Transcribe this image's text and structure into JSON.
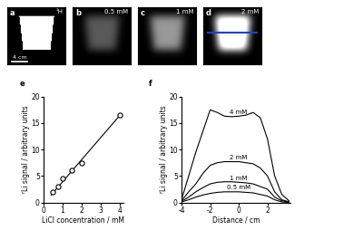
{
  "images": [
    {
      "label": "a",
      "caption": "¹H",
      "scale_bar": "4 cm"
    },
    {
      "label": "b",
      "caption": "0.5 mM"
    },
    {
      "label": "c",
      "caption": "1 mM"
    },
    {
      "label": "d",
      "caption": "2 mM"
    }
  ],
  "chart_data": [
    {
      "label": "e",
      "type": "scatter",
      "x_label": "LiCl concentration / mM",
      "y_label": "⁷Li signal / arbitrary units",
      "xlim": [
        0,
        4.2
      ],
      "ylim": [
        0,
        20
      ],
      "xticks": [
        0,
        1,
        2,
        3,
        4
      ],
      "yticks": [
        0,
        5,
        10,
        15,
        20
      ],
      "series": [
        {
          "type": "scatter",
          "marker": "o",
          "color": "#000000",
          "x": [
            0.5,
            0.75,
            1,
            1.5,
            2,
            4
          ],
          "values": [
            2,
            3,
            4.5,
            6,
            7.5,
            16.5
          ]
        },
        {
          "type": "line",
          "color": "#000000",
          "x": [
            0.4,
            4
          ],
          "values": [
            1.4,
            16.4
          ]
        }
      ]
    },
    {
      "label": "f",
      "type": "line",
      "x_label": "Distance / cm",
      "y_label": "⁷Li signal / arbitrary units",
      "xlim": [
        -4,
        3.6
      ],
      "ylim": [
        0,
        20
      ],
      "xticks": [
        -4,
        -2,
        0,
        2
      ],
      "yticks": [
        0,
        5,
        10,
        15,
        20
      ],
      "x": [
        -4,
        -3.5,
        -3,
        -2.5,
        -2,
        -1.5,
        -1,
        -0.5,
        0,
        0.5,
        1,
        1.5,
        2,
        2.5,
        3,
        3.5
      ],
      "series": [
        {
          "name": "4 mM",
          "color": "#000000",
          "values": [
            0.5,
            5,
            9.5,
            13.5,
            17.5,
            17,
            16.3,
            16.2,
            16.3,
            16.5,
            17,
            16,
            12,
            5,
            1.5,
            0.3
          ]
        },
        {
          "name": "2 mM",
          "color": "#000000",
          "values": [
            0.3,
            2,
            3.5,
            5.5,
            7,
            7.5,
            7.7,
            7.7,
            7.7,
            7.5,
            7.3,
            6.5,
            5,
            2,
            0.5,
            0.1
          ]
        },
        {
          "name": "1 mM",
          "color": "#000000",
          "values": [
            0.2,
            1,
            2,
            2.8,
            3.5,
            3.8,
            3.9,
            3.9,
            3.8,
            3.7,
            3.5,
            3,
            2.5,
            1,
            0.3,
            0.1
          ]
        },
        {
          "name": "0.5 mM",
          "color": "#000000",
          "values": [
            0.1,
            0.5,
            1,
            1.4,
            1.7,
            1.9,
            2,
            2,
            2,
            1.9,
            1.8,
            1.5,
            1.2,
            0.5,
            0.1,
            0
          ]
        }
      ]
    }
  ]
}
